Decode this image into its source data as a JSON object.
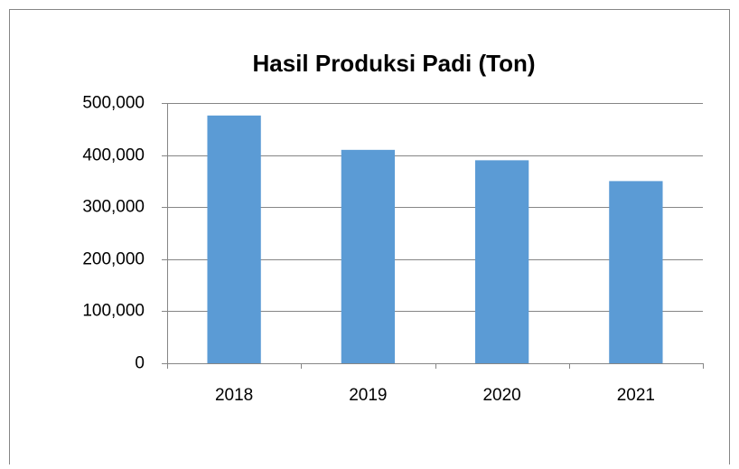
{
  "chart_data": {
    "type": "bar",
    "title": "Hasil Produksi Padi (Ton)",
    "categories": [
      "2018",
      "2019",
      "2020",
      "2021"
    ],
    "values": [
      476000,
      410000,
      390000,
      350000
    ],
    "color": "#5b9bd5",
    "ylim": [
      0,
      500000
    ],
    "yticks": [
      0,
      {
        "value": 100000,
        "label": "100,000"
      },
      {
        "value": 200000,
        "label": "200,000"
      },
      {
        "value": 300000,
        "label": "300,000"
      },
      {
        "value": 400000,
        "label": "400,000"
      },
      {
        "value": 500000,
        "label": "500,000"
      }
    ],
    "grid": true
  }
}
